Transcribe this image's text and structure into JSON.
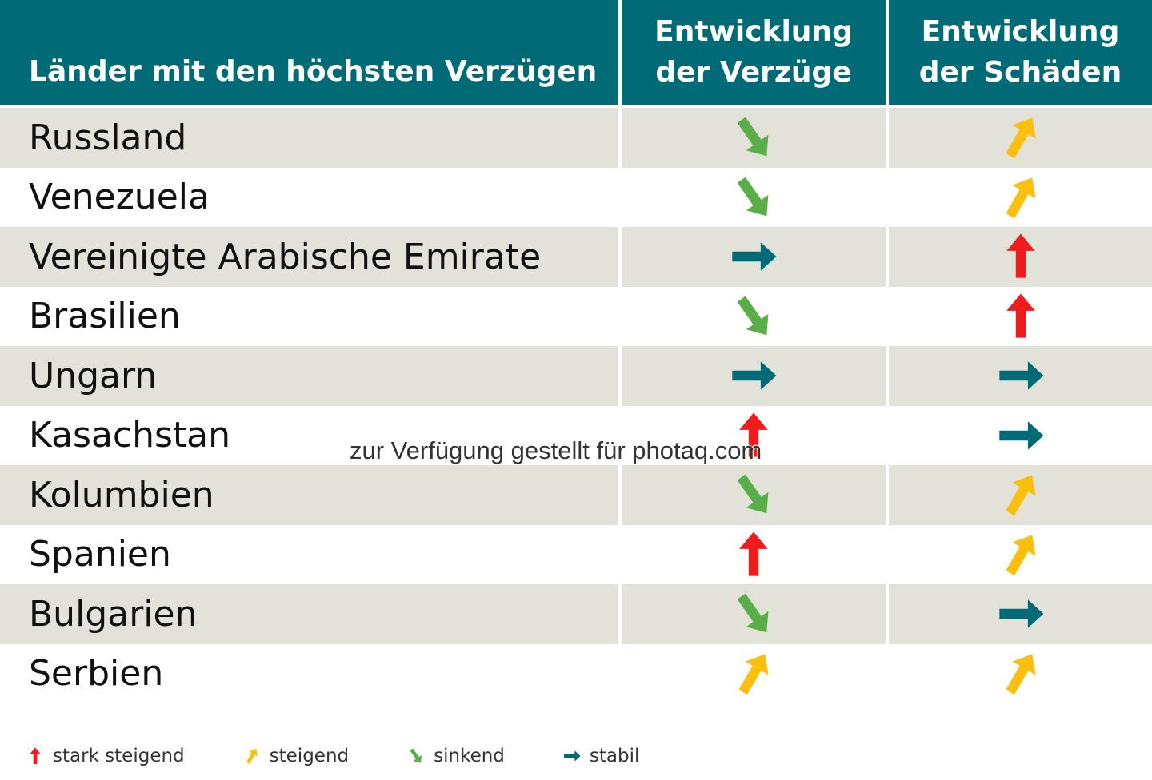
{
  "header": {
    "countries": "Länder mit den höchsten Verzügen",
    "col_delays": [
      "Entwicklung",
      "der Verzüge"
    ],
    "col_damages": [
      "Entwicklung",
      "der Schäden"
    ]
  },
  "rows": [
    {
      "country": "Russland",
      "delays": "sinkend",
      "damages": "steigend"
    },
    {
      "country": "Venezuela",
      "delays": "sinkend",
      "damages": "steigend"
    },
    {
      "country": "Vereinigte Arabische Emirate",
      "delays": "stabil",
      "damages": "stark steigend"
    },
    {
      "country": "Brasilien",
      "delays": "sinkend",
      "damages": "stark steigend"
    },
    {
      "country": "Ungarn",
      "delays": "stabil",
      "damages": "stabil"
    },
    {
      "country": "Kasachstan",
      "delays": "stark steigend",
      "damages": "stabil"
    },
    {
      "country": "Kolumbien",
      "delays": "sinkend",
      "damages": "steigend"
    },
    {
      "country": "Spanien",
      "delays": "stark steigend",
      "damages": "steigend"
    },
    {
      "country": "Bulgarien",
      "delays": "sinkend",
      "damages": "stabil"
    },
    {
      "country": "Serbien",
      "delays": "steigend",
      "damages": "steigend"
    }
  ],
  "legend": [
    {
      "key": "stark steigend",
      "label": "stark steigend",
      "icon": "red-up-arrow-icon"
    },
    {
      "key": "steigend",
      "label": "steigend",
      "icon": "yellow-diagonal-up-arrow-icon"
    },
    {
      "key": "sinkend",
      "label": "sinkend",
      "icon": "green-diagonal-down-arrow-icon"
    },
    {
      "key": "stabil",
      "label": "stabil",
      "icon": "teal-right-arrow-icon"
    }
  ],
  "colors": {
    "header_bg": "#006a76",
    "row_shade": "#e2e2d8",
    "stark_steigend": "#ee1c1c",
    "steigend": "#fbbf0f",
    "sinkend": "#5aae48",
    "stabil": "#006a76"
  },
  "watermark": "zur Verfügung gestellt für photaq.com"
}
